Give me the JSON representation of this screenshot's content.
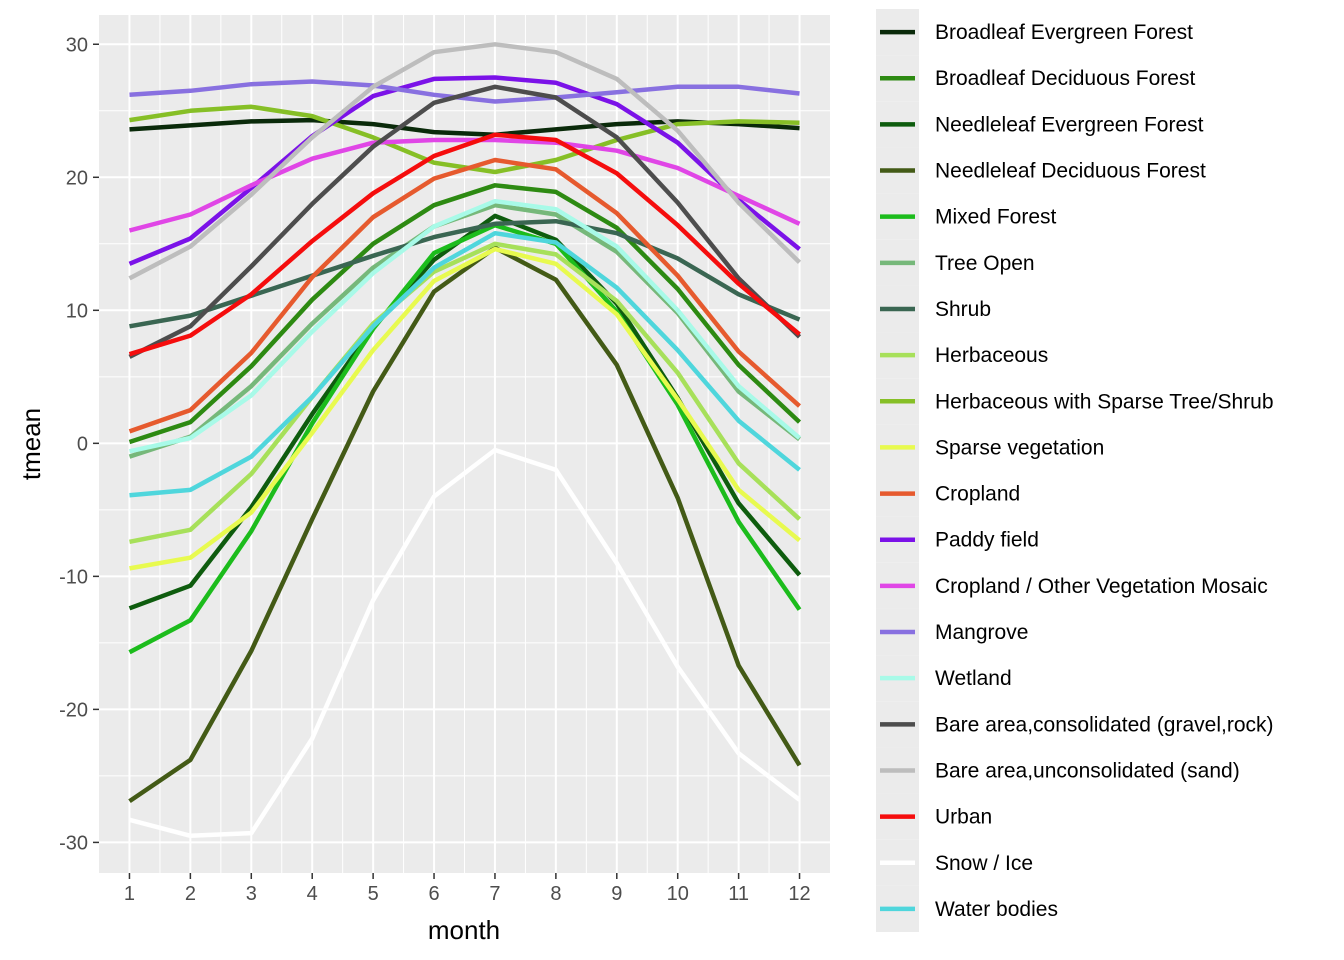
{
  "chart_data": {
    "type": "line",
    "xlabel": "month",
    "ylabel": "tmean",
    "x": [
      1,
      2,
      3,
      4,
      5,
      6,
      7,
      8,
      9,
      10,
      11,
      12
    ],
    "x_ticks": [
      "1",
      "2",
      "3",
      "4",
      "5",
      "6",
      "7",
      "8",
      "9",
      "10",
      "11",
      "12"
    ],
    "y_ticks": [
      -30,
      -20,
      -10,
      0,
      10,
      20,
      30
    ],
    "xlim": [
      0.5,
      12.5
    ],
    "ylim": [
      -32.3,
      32.2
    ],
    "grid": true,
    "legend_position": "right",
    "series": [
      {
        "name": "Broadleaf Evergreen Forest",
        "color": "#0a2a0a",
        "values": [
          23.6,
          23.9,
          24.2,
          24.3,
          24.0,
          23.4,
          23.2,
          23.6,
          24.0,
          24.2,
          24.0,
          23.7
        ]
      },
      {
        "name": "Broadleaf Deciduous Forest",
        "color": "#2d8a12",
        "values": [
          0.1,
          1.6,
          5.8,
          10.8,
          15.0,
          17.9,
          19.4,
          18.9,
          16.2,
          11.6,
          5.9,
          1.6
        ]
      },
      {
        "name": "Needleleaf Evergreen Forest",
        "color": "#0e5c0e",
        "values": [
          -12.4,
          -10.7,
          -4.8,
          2.2,
          8.7,
          13.8,
          17.1,
          15.3,
          10.5,
          3.4,
          -4.5,
          -9.9
        ]
      },
      {
        "name": "Needleleaf Deciduous Forest",
        "color": "#435a16",
        "values": [
          -26.9,
          -23.8,
          -15.6,
          -5.7,
          3.9,
          11.4,
          14.7,
          12.3,
          5.9,
          -4.1,
          -16.7,
          -24.2
        ]
      },
      {
        "name": "Mixed Forest",
        "color": "#1cbc1c",
        "values": [
          -15.7,
          -13.3,
          -6.6,
          1.5,
          8.6,
          14.3,
          16.4,
          15.0,
          9.9,
          2.9,
          -5.9,
          -12.5
        ]
      },
      {
        "name": "Tree Open",
        "color": "#76b87a",
        "values": [
          -1.0,
          0.5,
          4.3,
          9.0,
          13.2,
          16.3,
          17.9,
          17.2,
          14.4,
          9.8,
          3.9,
          0.3
        ]
      },
      {
        "name": "Shrub",
        "color": "#3a6652",
        "values": [
          8.8,
          9.6,
          11.1,
          12.6,
          14.1,
          15.5,
          16.5,
          16.7,
          15.8,
          13.9,
          11.2,
          9.3
        ]
      },
      {
        "name": "Herbaceous",
        "color": "#a7e05a",
        "values": [
          -7.4,
          -6.5,
          -2.3,
          3.5,
          9.0,
          12.9,
          15.0,
          14.2,
          10.7,
          5.3,
          -1.5,
          -5.7
        ]
      },
      {
        "name": "Herbaceous with Sparse Tree/Shrub",
        "color": "#86bf26",
        "values": [
          24.3,
          25.0,
          25.3,
          24.6,
          23.0,
          21.1,
          20.4,
          21.3,
          22.8,
          24.0,
          24.2,
          24.1
        ]
      },
      {
        "name": "Sparse vegetation",
        "color": "#e8fa4f",
        "values": [
          -9.4,
          -8.6,
          -5.2,
          0.8,
          7.0,
          12.2,
          14.6,
          13.5,
          9.7,
          3.3,
          -3.5,
          -7.3
        ]
      },
      {
        "name": "Cropland",
        "color": "#e65a2e",
        "values": [
          0.9,
          2.5,
          6.8,
          12.5,
          17.0,
          19.9,
          21.3,
          20.6,
          17.3,
          12.6,
          6.9,
          2.8
        ]
      },
      {
        "name": "Paddy field",
        "color": "#7b12e8",
        "values": [
          13.5,
          15.4,
          19.2,
          23.1,
          26.1,
          27.4,
          27.5,
          27.1,
          25.5,
          22.6,
          18.3,
          14.6
        ]
      },
      {
        "name": "Cropland / Other Vegetation Mosaic",
        "color": "#e046e6",
        "values": [
          16.0,
          17.2,
          19.4,
          21.4,
          22.6,
          22.8,
          22.8,
          22.6,
          22.0,
          20.7,
          18.6,
          16.5
        ]
      },
      {
        "name": "Mangrove",
        "color": "#8870e0",
        "values": [
          26.2,
          26.5,
          27.0,
          27.2,
          26.9,
          26.2,
          25.7,
          26.0,
          26.4,
          26.8,
          26.8,
          26.3
        ]
      },
      {
        "name": "Wetland",
        "color": "#a8fae8",
        "values": [
          -0.6,
          0.4,
          3.6,
          8.4,
          12.8,
          16.3,
          18.2,
          17.6,
          14.8,
          10.0,
          4.3,
          0.4
        ]
      },
      {
        "name": "Bare area,consolidated (gravel,rock)",
        "color": "#4d4d4d",
        "values": [
          6.5,
          8.8,
          13.3,
          18.0,
          22.3,
          25.6,
          26.8,
          26.0,
          23.0,
          18.1,
          12.4,
          8.0
        ]
      },
      {
        "name": "Bare area,unconsolidated (sand)",
        "color": "#bdbdbd",
        "values": [
          12.4,
          14.8,
          18.7,
          23.0,
          26.8,
          29.4,
          30.0,
          29.4,
          27.4,
          23.5,
          18.1,
          13.6
        ]
      },
      {
        "name": "Urban",
        "color": "#f50d0d",
        "values": [
          6.7,
          8.1,
          11.2,
          15.2,
          18.8,
          21.6,
          23.2,
          22.8,
          20.3,
          16.4,
          12.0,
          8.2
        ]
      },
      {
        "name": "Snow / Ice",
        "color": "#ffffff",
        "values": [
          -28.3,
          -29.5,
          -29.3,
          -22.2,
          -11.8,
          -4.0,
          -0.5,
          -2.0,
          -9.0,
          -16.8,
          -23.3,
          -26.8
        ]
      },
      {
        "name": "Water bodies",
        "color": "#4fd6dc",
        "values": [
          -3.9,
          -3.5,
          -1.0,
          3.5,
          8.8,
          13.2,
          15.8,
          15.1,
          11.7,
          7.0,
          1.7,
          -2.0
        ]
      }
    ]
  }
}
